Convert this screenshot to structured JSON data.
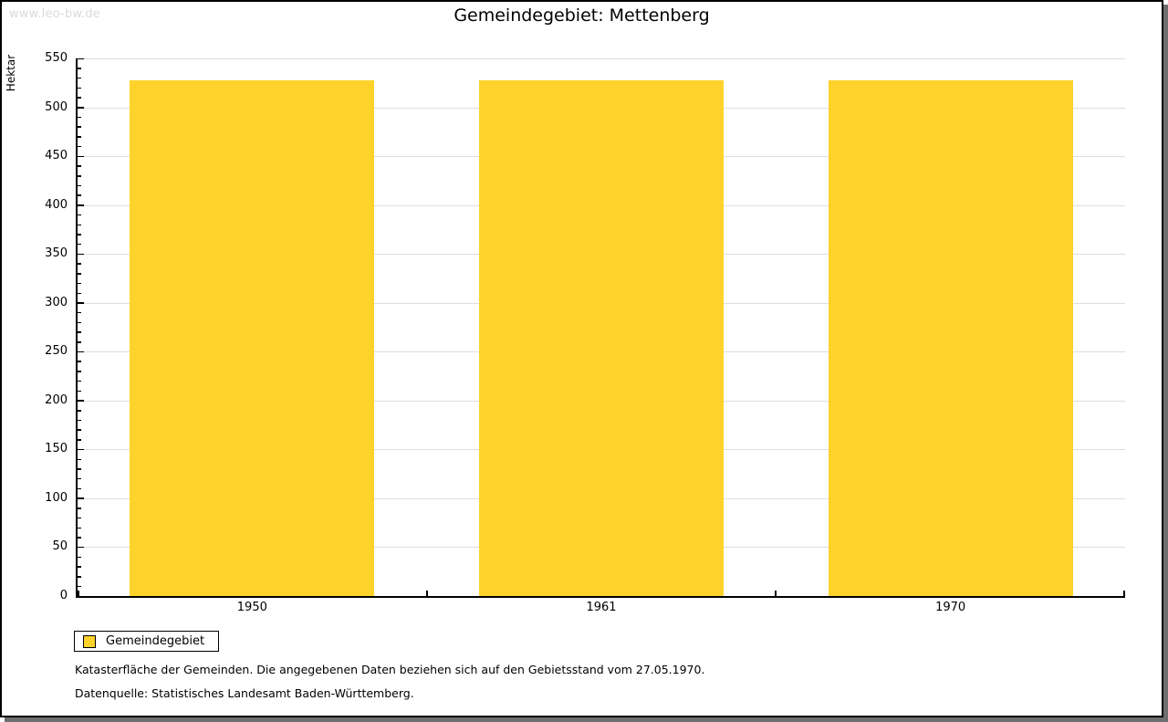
{
  "watermark": "www.leo-bw.de",
  "title": "Gemeindegebiet: Mettenberg",
  "chart_data": {
    "type": "bar",
    "title": "Gemeindegebiet: Mettenberg",
    "categories": [
      "1950",
      "1961",
      "1970"
    ],
    "series": [
      {
        "name": "Gemeindegebiet",
        "color": "#FDD32B",
        "values": [
          528,
          528,
          528
        ]
      }
    ],
    "xlabel": "",
    "ylabel": "Hektar",
    "ylim": [
      0,
      550
    ],
    "ytick_major": 50,
    "ytick_minor": 10,
    "grid": true,
    "legend_position": "bottom-left"
  },
  "colors": {
    "bar": "#FDD32B",
    "grid": "#DDDDDD",
    "axis": "#000000",
    "watermark": "#DBDBDB",
    "shadow": "#6E6E6E"
  },
  "legend": {
    "items": [
      {
        "label": "Gemeindegebiet",
        "color": "#FDD32B"
      }
    ]
  },
  "footer": {
    "line1": "Katasterfläche der Gemeinden. Die angegebenen Daten beziehen sich auf den Gebietsstand vom 27.05.1970.",
    "line2": "Datenquelle: Statistisches Landesamt Baden-Württemberg."
  }
}
